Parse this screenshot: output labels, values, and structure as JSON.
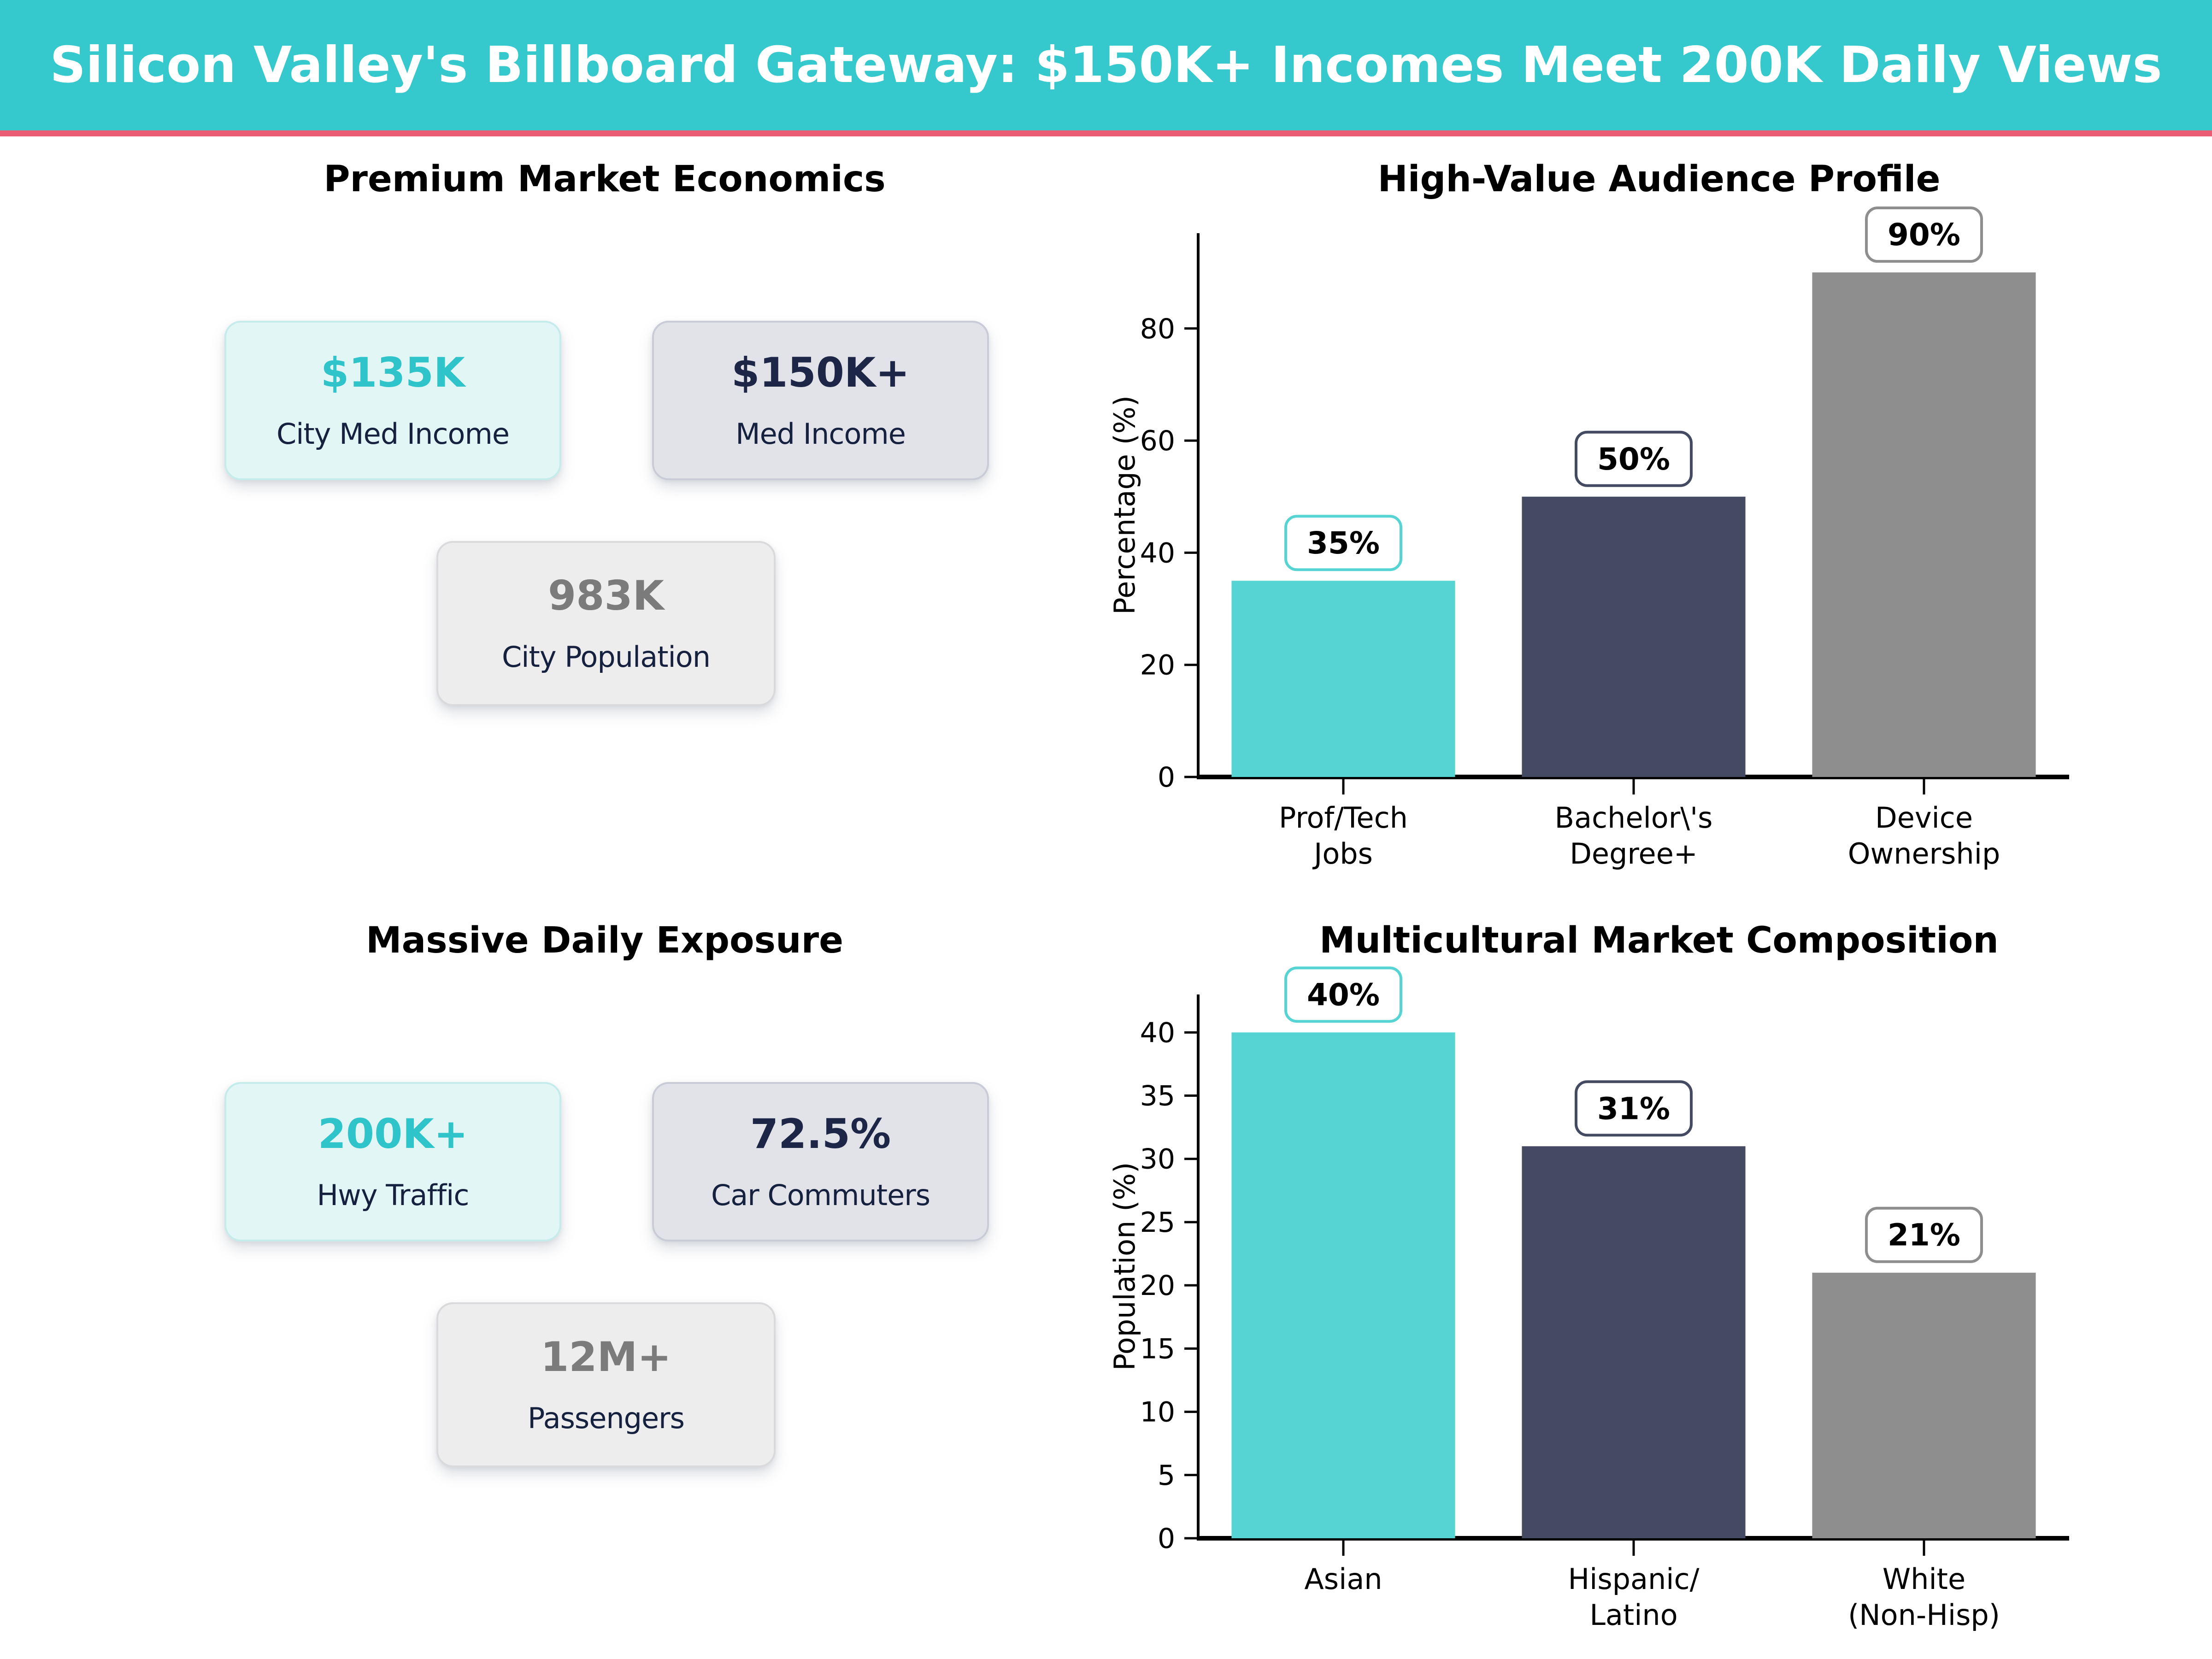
{
  "header": {
    "title": "Silicon Valley's Billboard Gateway: $150K+ Incomes Meet 200K Daily Views",
    "background_color": "#35c8cd",
    "accent_stripe_color": "#ea5c73"
  },
  "palette": {
    "teal_bar": "#56d4d3",
    "navy_bar": "#444a62",
    "gray_bar": "#8e8e8e",
    "teal_text": "#2ec4ca",
    "navy_text": "#1d2647",
    "gray_text": "#7b7b7b"
  },
  "sections": {
    "economics": {
      "title": "Premium Market Economics",
      "cards": [
        {
          "value": "$135K",
          "label": "City Med Income"
        },
        {
          "value": "$150K+",
          "label": "Med Income"
        },
        {
          "value": "983K",
          "label": "City Population"
        }
      ]
    },
    "exposure": {
      "title": "Massive Daily Exposure",
      "cards": [
        {
          "value": "200K+",
          "label": "Hwy Traffic"
        },
        {
          "value": "72.5%",
          "label": "Car Commuters"
        },
        {
          "value": "12M+",
          "label": "Passengers"
        }
      ]
    }
  },
  "chart_data": [
    {
      "type": "bar",
      "title": "High-Value Audience Profile",
      "categories": [
        [
          "Prof/Tech",
          "Jobs"
        ],
        [
          "Bachelor\\'s",
          "Degree+"
        ],
        [
          "Device",
          "Ownership"
        ]
      ],
      "values": [
        35,
        50,
        90
      ],
      "bar_labels": [
        "35%",
        "50%",
        "90%"
      ],
      "bar_colors": [
        "#56d4d3",
        "#444a62",
        "#8e8e8e"
      ],
      "xlabel": "",
      "ylabel": "Percentage (%)",
      "yticks": [
        0,
        20,
        40,
        60,
        80
      ],
      "ylim": [
        0,
        97
      ],
      "grid": false,
      "legend": "none"
    },
    {
      "type": "bar",
      "title": "Multicultural Market Composition",
      "categories": [
        [
          "Asian"
        ],
        [
          "Hispanic/",
          "Latino"
        ],
        [
          "White",
          "(Non-Hisp)"
        ]
      ],
      "values": [
        40,
        31,
        21
      ],
      "bar_labels": [
        "40%",
        "31%",
        "21%"
      ],
      "bar_colors": [
        "#56d4d3",
        "#444a62",
        "#8e8e8e"
      ],
      "xlabel": "",
      "ylabel": "Population (%)",
      "yticks": [
        0,
        5,
        10,
        15,
        20,
        25,
        30,
        35,
        40
      ],
      "ylim": [
        0,
        43
      ],
      "grid": false,
      "legend": "none"
    }
  ]
}
